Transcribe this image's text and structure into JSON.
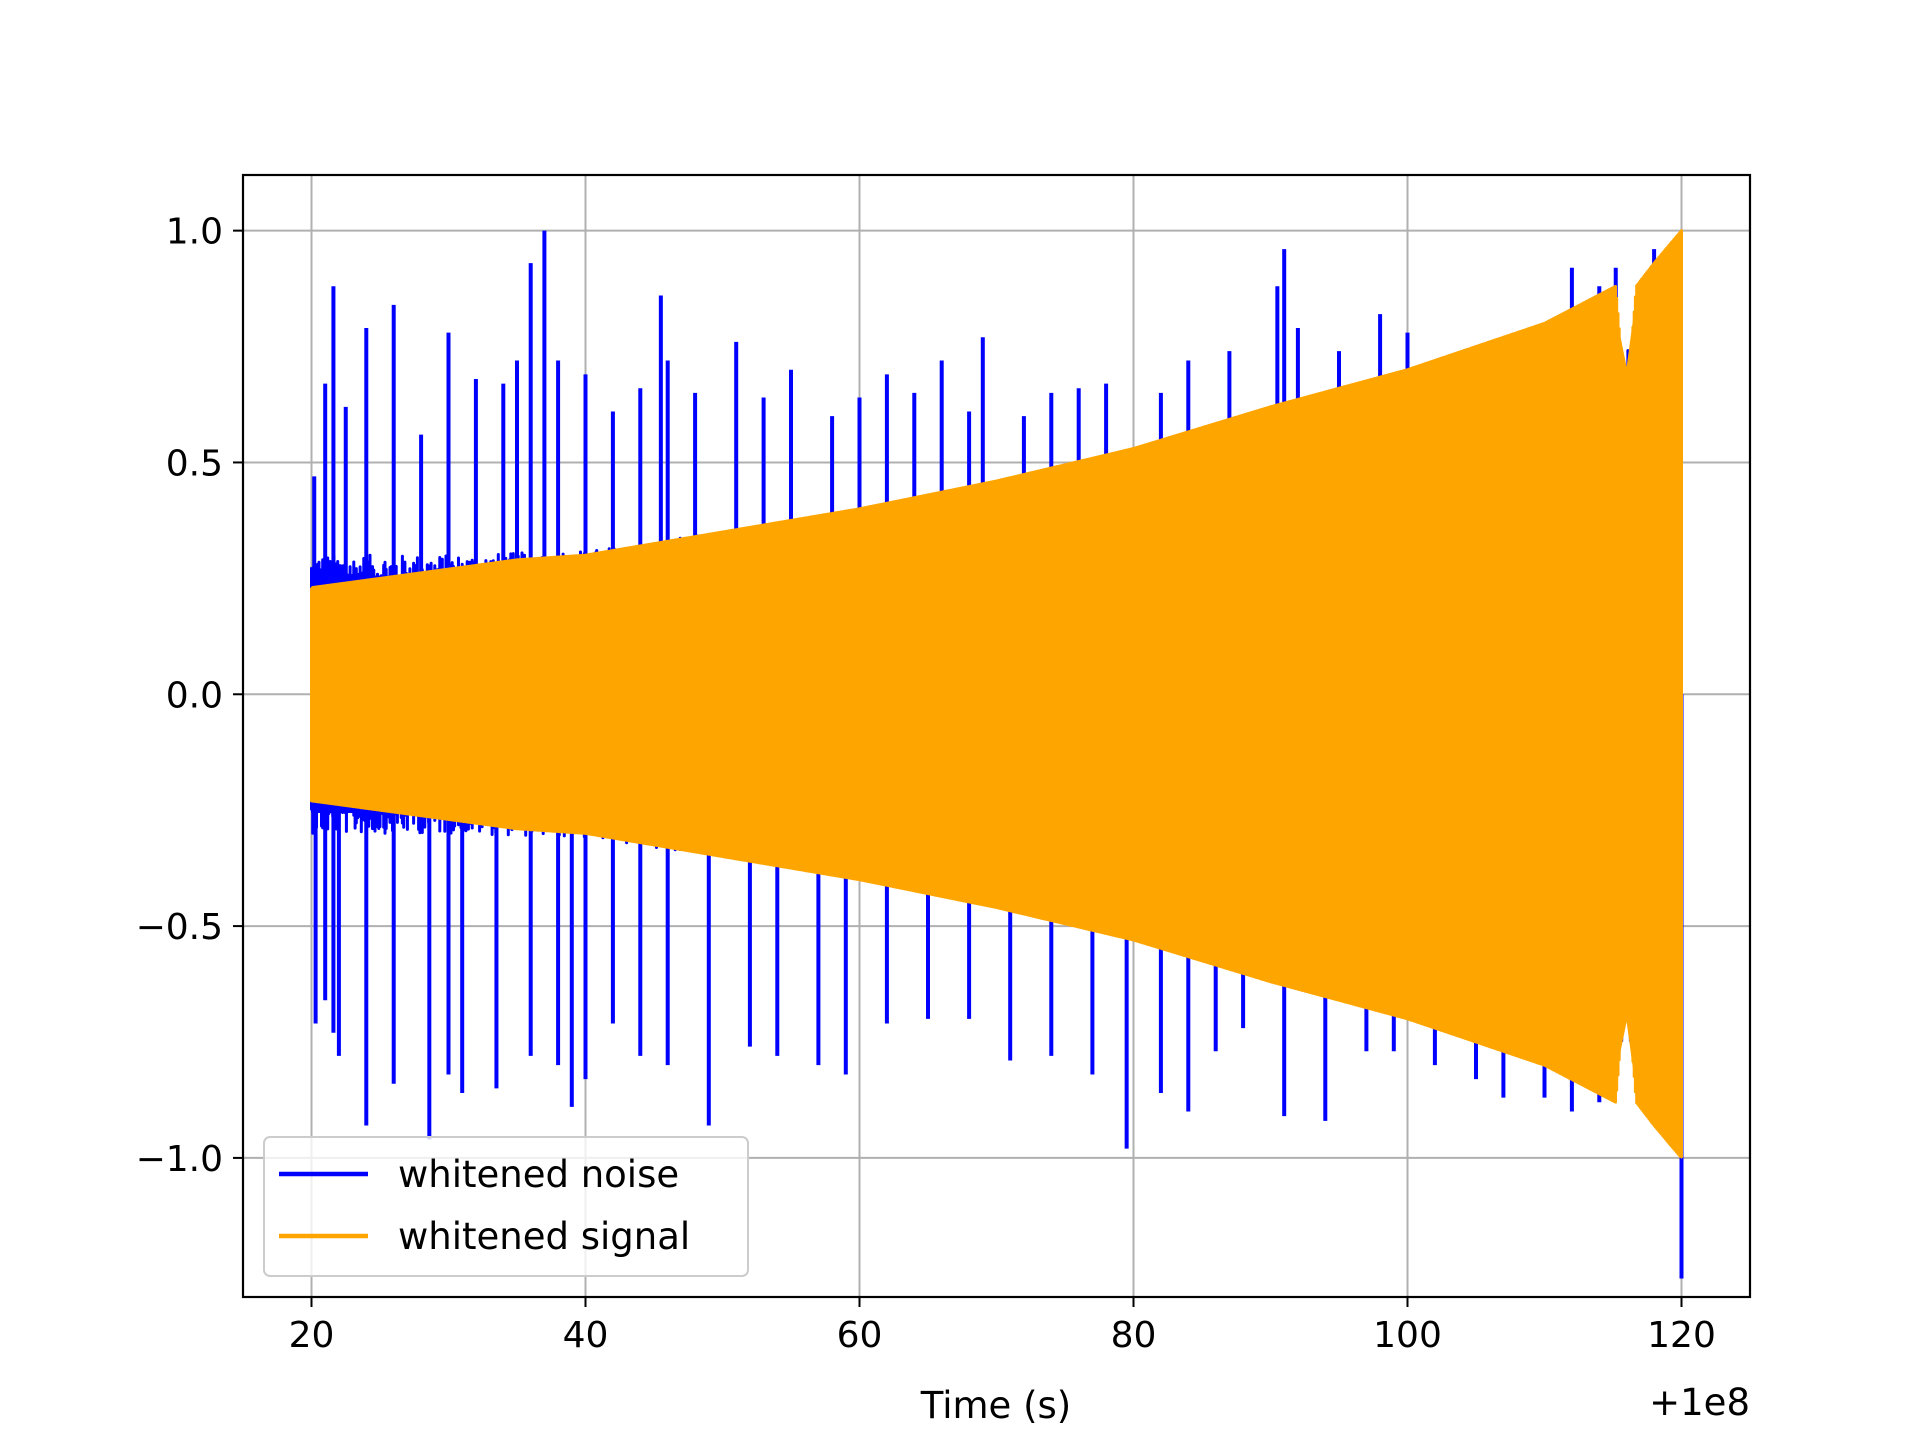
{
  "chart_data": {
    "type": "line",
    "title": "",
    "xlabel": "Time (s)",
    "ylabel": "",
    "x_offset_label": "+1e8",
    "xlim": [
      15,
      125
    ],
    "ylim": [
      -1.3,
      1.12
    ],
    "grid": true,
    "legend_position": "lower-left",
    "x_ticks": [
      {
        "value": 20,
        "label": "20"
      },
      {
        "value": 40,
        "label": "40"
      },
      {
        "value": 60,
        "label": "60"
      },
      {
        "value": 80,
        "label": "80"
      },
      {
        "value": 100,
        "label": "100"
      },
      {
        "value": 120,
        "label": "120"
      }
    ],
    "y_ticks": [
      {
        "value": 1.0,
        "label": "1.0"
      },
      {
        "value": 0.5,
        "label": "0.5"
      },
      {
        "value": 0.0,
        "label": "0.0"
      },
      {
        "value": -0.5,
        "label": "−0.5"
      },
      {
        "value": -1.0,
        "label": "−1.0"
      }
    ],
    "series": [
      {
        "name": "whitened noise",
        "color": "#0000ff",
        "envelope": {
          "x": [
            20,
            30,
            40,
            50,
            60,
            70,
            80,
            90,
            100,
            110,
            116,
            120
          ],
          "upper": [
            0.3,
            0.3,
            0.31,
            0.35,
            0.4,
            0.45,
            0.52,
            0.58,
            0.65,
            0.72,
            0.75,
            0.85
          ],
          "lower": [
            -0.3,
            -0.3,
            -0.31,
            -0.35,
            -0.4,
            -0.45,
            -0.52,
            -0.58,
            -0.65,
            -0.72,
            -0.75,
            -0.85
          ]
        },
        "spikes": [
          {
            "x": 20.2,
            "y": 0.47
          },
          {
            "x": 21.0,
            "y": 0.67
          },
          {
            "x": 21.6,
            "y": 0.88
          },
          {
            "x": 22.5,
            "y": 0.62
          },
          {
            "x": 24.0,
            "y": 0.79
          },
          {
            "x": 26.0,
            "y": 0.84
          },
          {
            "x": 28.0,
            "y": 0.56
          },
          {
            "x": 30.0,
            "y": 0.78
          },
          {
            "x": 32.0,
            "y": 0.68
          },
          {
            "x": 34.0,
            "y": 0.67
          },
          {
            "x": 35.0,
            "y": 0.72
          },
          {
            "x": 36.0,
            "y": 0.93
          },
          {
            "x": 37.0,
            "y": 1.0
          },
          {
            "x": 38.0,
            "y": 0.72
          },
          {
            "x": 40.0,
            "y": 0.69
          },
          {
            "x": 42.0,
            "y": 0.61
          },
          {
            "x": 44.0,
            "y": 0.66
          },
          {
            "x": 45.5,
            "y": 0.86
          },
          {
            "x": 46.0,
            "y": 0.72
          },
          {
            "x": 48.0,
            "y": 0.65
          },
          {
            "x": 51.0,
            "y": 0.76
          },
          {
            "x": 53.0,
            "y": 0.64
          },
          {
            "x": 55.0,
            "y": 0.7
          },
          {
            "x": 58.0,
            "y": 0.6
          },
          {
            "x": 60.0,
            "y": 0.64
          },
          {
            "x": 62.0,
            "y": 0.69
          },
          {
            "x": 64.0,
            "y": 0.65
          },
          {
            "x": 66.0,
            "y": 0.72
          },
          {
            "x": 68.0,
            "y": 0.61
          },
          {
            "x": 69.0,
            "y": 0.77
          },
          {
            "x": 72.0,
            "y": 0.6
          },
          {
            "x": 74.0,
            "y": 0.65
          },
          {
            "x": 76.0,
            "y": 0.66
          },
          {
            "x": 78.0,
            "y": 0.67
          },
          {
            "x": 82.0,
            "y": 0.65
          },
          {
            "x": 84.0,
            "y": 0.72
          },
          {
            "x": 87.0,
            "y": 0.74
          },
          {
            "x": 90.5,
            "y": 0.88
          },
          {
            "x": 91.0,
            "y": 0.96
          },
          {
            "x": 92.0,
            "y": 0.79
          },
          {
            "x": 95.0,
            "y": 0.74
          },
          {
            "x": 98.0,
            "y": 0.82
          },
          {
            "x": 100.0,
            "y": 0.78
          },
          {
            "x": 104.0,
            "y": 0.73
          },
          {
            "x": 107.0,
            "y": 0.76
          },
          {
            "x": 110.0,
            "y": 0.79
          },
          {
            "x": 112.0,
            "y": 0.92
          },
          {
            "x": 114.0,
            "y": 0.88
          },
          {
            "x": 115.2,
            "y": 0.92
          },
          {
            "x": 118.0,
            "y": 0.96
          },
          {
            "x": 20.3,
            "y": -0.71
          },
          {
            "x": 21.0,
            "y": -0.66
          },
          {
            "x": 21.6,
            "y": -0.73
          },
          {
            "x": 22.0,
            "y": -0.78
          },
          {
            "x": 24.0,
            "y": -0.93
          },
          {
            "x": 26.0,
            "y": -0.84
          },
          {
            "x": 28.6,
            "y": -0.96
          },
          {
            "x": 30.0,
            "y": -0.82
          },
          {
            "x": 31.0,
            "y": -0.86
          },
          {
            "x": 33.5,
            "y": -0.85
          },
          {
            "x": 36.0,
            "y": -0.78
          },
          {
            "x": 38.0,
            "y": -0.8
          },
          {
            "x": 39.0,
            "y": -0.89
          },
          {
            "x": 40.0,
            "y": -0.83
          },
          {
            "x": 42.0,
            "y": -0.71
          },
          {
            "x": 44.0,
            "y": -0.78
          },
          {
            "x": 46.0,
            "y": -0.8
          },
          {
            "x": 49.0,
            "y": -0.93
          },
          {
            "x": 52.0,
            "y": -0.76
          },
          {
            "x": 54.0,
            "y": -0.78
          },
          {
            "x": 57.0,
            "y": -0.8
          },
          {
            "x": 59.0,
            "y": -0.82
          },
          {
            "x": 62.0,
            "y": -0.71
          },
          {
            "x": 65.0,
            "y": -0.7
          },
          {
            "x": 68.0,
            "y": -0.7
          },
          {
            "x": 71.0,
            "y": -0.79
          },
          {
            "x": 74.0,
            "y": -0.78
          },
          {
            "x": 77.0,
            "y": -0.82
          },
          {
            "x": 79.5,
            "y": -0.98
          },
          {
            "x": 82.0,
            "y": -0.86
          },
          {
            "x": 84.0,
            "y": -0.9
          },
          {
            "x": 86.0,
            "y": -0.77
          },
          {
            "x": 88.0,
            "y": -0.72
          },
          {
            "x": 91.0,
            "y": -0.91
          },
          {
            "x": 94.0,
            "y": -0.92
          },
          {
            "x": 97.0,
            "y": -0.77
          },
          {
            "x": 99.0,
            "y": -0.77
          },
          {
            "x": 102.0,
            "y": -0.8
          },
          {
            "x": 105.0,
            "y": -0.83
          },
          {
            "x": 107.0,
            "y": -0.87
          },
          {
            "x": 110.0,
            "y": -0.87
          },
          {
            "x": 112.0,
            "y": -0.9
          },
          {
            "x": 114.0,
            "y": -0.88
          },
          {
            "x": 120.0,
            "y": -1.26
          }
        ]
      },
      {
        "name": "whitened signal",
        "color": "#ffa500",
        "envelope": {
          "x": [
            20,
            30,
            35,
            40,
            50,
            60,
            70,
            80,
            90,
            100,
            110,
            115.2,
            115.7,
            116.2,
            116.7,
            118,
            120
          ],
          "upper": [
            0.23,
            0.27,
            0.29,
            0.3,
            0.35,
            0.4,
            0.46,
            0.53,
            0.62,
            0.7,
            0.8,
            0.88,
            0.7,
            0.7,
            0.88,
            0.93,
            1.0
          ],
          "lower": [
            -0.23,
            -0.27,
            -0.29,
            -0.3,
            -0.35,
            -0.4,
            -0.46,
            -0.53,
            -0.62,
            -0.7,
            -0.8,
            -0.88,
            -0.7,
            -0.7,
            -0.88,
            -0.93,
            -1.0
          ]
        }
      }
    ]
  }
}
